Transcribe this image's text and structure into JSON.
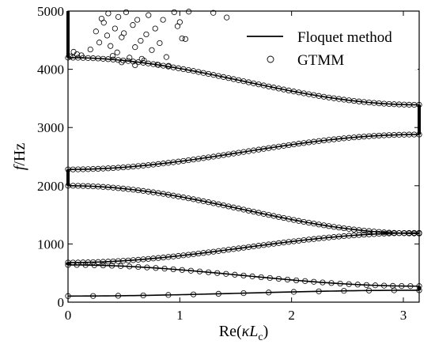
{
  "chart_data": {
    "type": "scatter",
    "xlabel_parts": [
      "Re(",
      "κ",
      "L",
      "c",
      ")"
    ],
    "ylabel_parts": [
      "f",
      "/Hz"
    ],
    "xlim": [
      0,
      3.1416
    ],
    "ylim": [
      0,
      5000
    ],
    "x_ticks": [
      0,
      1,
      2,
      3
    ],
    "y_ticks": [
      0,
      1000,
      2000,
      3000,
      4000,
      5000
    ],
    "x_tick_labels": [
      "0",
      "1",
      "2",
      "3"
    ],
    "y_tick_labels": [
      "0",
      "1000",
      "2000",
      "3000",
      "4000",
      "5000"
    ],
    "legend_position": "top-right",
    "series": [
      {
        "name": "Floquet method",
        "style": "line",
        "color": "#000000",
        "bands": [
          {
            "f0": 105,
            "fpi": 205
          },
          {
            "f0": 640,
            "fpi": 275
          },
          {
            "f0": 680,
            "fpi": 1190
          },
          {
            "f0": 2000,
            "fpi": 1180
          },
          {
            "f0": 2280,
            "fpi": 2880
          },
          {
            "f0": 4200,
            "fpi": 3390
          }
        ],
        "vertical_segments": [
          {
            "x": 3.1416,
            "from": 205,
            "to": 275
          },
          {
            "x": 3.1416,
            "from": 1180,
            "to": 1190
          },
          {
            "x": 3.1416,
            "from": 2880,
            "to": 3390
          },
          {
            "x": 0,
            "from": 640,
            "to": 680
          },
          {
            "x": 0,
            "from": 2000,
            "to": 2280
          },
          {
            "x": 0,
            "from": 4200,
            "to": 5000
          }
        ]
      },
      {
        "name": "GTMM",
        "style": "marker",
        "marker": "open-circle",
        "color": "#000000",
        "scatter_extra": [
          [
            0.02,
            4220
          ],
          [
            0.05,
            4300
          ],
          [
            0.08,
            4260
          ],
          [
            0.12,
            4240
          ],
          [
            0.2,
            4340
          ],
          [
            0.25,
            4650
          ],
          [
            0.28,
            4460
          ],
          [
            0.3,
            4870
          ],
          [
            0.32,
            4800
          ],
          [
            0.35,
            4580
          ],
          [
            0.38,
            4400
          ],
          [
            0.4,
            4230
          ],
          [
            0.42,
            4700
          ],
          [
            0.45,
            4900
          ],
          [
            0.48,
            4550
          ],
          [
            0.5,
            4620
          ],
          [
            0.52,
            4980
          ],
          [
            0.55,
            4200
          ],
          [
            0.58,
            4760
          ],
          [
            0.6,
            4380
          ],
          [
            0.62,
            4850
          ],
          [
            0.65,
            4490
          ],
          [
            0.68,
            4150
          ],
          [
            0.7,
            4600
          ],
          [
            0.72,
            4930
          ],
          [
            0.75,
            4330
          ],
          [
            0.78,
            4700
          ],
          [
            0.8,
            4080
          ],
          [
            0.82,
            4450
          ],
          [
            0.85,
            4850
          ],
          [
            0.88,
            4210
          ],
          [
            0.9,
            4060
          ],
          [
            0.95,
            4980
          ],
          [
            0.98,
            4740
          ],
          [
            1.0,
            4810
          ],
          [
            1.02,
            4530
          ],
          [
            1.05,
            4520
          ],
          [
            1.08,
            4990
          ],
          [
            1.3,
            4970
          ],
          [
            1.42,
            4890
          ],
          [
            0.48,
            4120
          ],
          [
            0.36,
            4960
          ],
          [
            0.6,
            4070
          ],
          [
            0.44,
            4290
          ],
          [
            0.66,
            4180
          ]
        ]
      }
    ]
  }
}
